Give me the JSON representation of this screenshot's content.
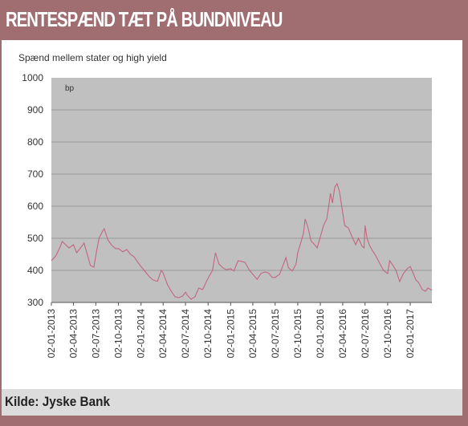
{
  "header": {
    "title": "RENTESPÆND TÆT PÅ BUNDNIVEAU"
  },
  "footer": {
    "source": "Kilde: Jyske Bank"
  },
  "colors": {
    "frame": "#a06e71",
    "plot_bg": "#c0c0c0",
    "line": "#c2667f",
    "footer_bg": "#dcdcdc"
  },
  "chart_data": {
    "type": "line",
    "title": "",
    "subtitle": "Spænd mellem stater og high yield",
    "unit_label": "bp",
    "xlabel": "",
    "ylabel": "",
    "ylim": [
      300,
      1000
    ],
    "yticks": [
      300,
      400,
      500,
      600,
      700,
      800,
      900,
      1000
    ],
    "xlim": [
      "2013-01-02",
      "2017-03-31"
    ],
    "xticks": [
      "02-01-2013",
      "02-04-2013",
      "02-07-2013",
      "02-10-2013",
      "02-01-2014",
      "02-04-2014",
      "02-07-2014",
      "02-10-2014",
      "02-01-2015",
      "02-04-2015",
      "02-07-2015",
      "02-10-2015",
      "02-01-2016",
      "02-04-2016",
      "02-07-2016",
      "02-10-2016",
      "02-01-2017"
    ],
    "grid": true,
    "legend": "none",
    "series": [
      {
        "values": [
          [
            "2013-01-02",
            430
          ],
          [
            "2013-01-20",
            445
          ],
          [
            "2013-02-05",
            470
          ],
          [
            "2013-02-15",
            490
          ],
          [
            "2013-03-01",
            480
          ],
          [
            "2013-03-15",
            470
          ],
          [
            "2013-04-02",
            480
          ],
          [
            "2013-04-15",
            455
          ],
          [
            "2013-05-01",
            470
          ],
          [
            "2013-05-15",
            485
          ],
          [
            "2013-05-28",
            450
          ],
          [
            "2013-06-10",
            415
          ],
          [
            "2013-06-24",
            410
          ],
          [
            "2013-07-05",
            460
          ],
          [
            "2013-07-15",
            500
          ],
          [
            "2013-07-28",
            520
          ],
          [
            "2013-08-05",
            530
          ],
          [
            "2013-08-20",
            495
          ],
          [
            "2013-09-05",
            478
          ],
          [
            "2013-09-20",
            468
          ],
          [
            "2013-10-02",
            468
          ],
          [
            "2013-10-20",
            458
          ],
          [
            "2013-11-05",
            465
          ],
          [
            "2013-11-20",
            450
          ],
          [
            "2013-12-05",
            442
          ],
          [
            "2013-12-20",
            425
          ],
          [
            "2014-01-02",
            412
          ],
          [
            "2014-01-20",
            395
          ],
          [
            "2014-02-05",
            380
          ],
          [
            "2014-02-20",
            370
          ],
          [
            "2014-03-10",
            366
          ],
          [
            "2014-03-25",
            400
          ],
          [
            "2014-04-02",
            392
          ],
          [
            "2014-04-20",
            355
          ],
          [
            "2014-05-05",
            335
          ],
          [
            "2014-05-20",
            318
          ],
          [
            "2014-06-05",
            315
          ],
          [
            "2014-06-20",
            320
          ],
          [
            "2014-07-02",
            332
          ],
          [
            "2014-07-10",
            322
          ],
          [
            "2014-07-25",
            310
          ],
          [
            "2014-08-10",
            318
          ],
          [
            "2014-08-25",
            345
          ],
          [
            "2014-09-10",
            340
          ],
          [
            "2014-09-25",
            365
          ],
          [
            "2014-10-05",
            380
          ],
          [
            "2014-10-20",
            400
          ],
          [
            "2014-11-01",
            455
          ],
          [
            "2014-11-15",
            420
          ],
          [
            "2014-12-01",
            408
          ],
          [
            "2014-12-15",
            402
          ],
          [
            "2015-01-02",
            405
          ],
          [
            "2015-01-15",
            398
          ],
          [
            "2015-02-01",
            430
          ],
          [
            "2015-02-15",
            428
          ],
          [
            "2015-03-01",
            425
          ],
          [
            "2015-03-20",
            400
          ],
          [
            "2015-04-02",
            388
          ],
          [
            "2015-04-20",
            372
          ],
          [
            "2015-05-05",
            390
          ],
          [
            "2015-05-20",
            395
          ],
          [
            "2015-06-05",
            392
          ],
          [
            "2015-06-20",
            378
          ],
          [
            "2015-07-02",
            378
          ],
          [
            "2015-07-20",
            388
          ],
          [
            "2015-08-05",
            420
          ],
          [
            "2015-08-15",
            440
          ],
          [
            "2015-08-25",
            408
          ],
          [
            "2015-09-10",
            398
          ],
          [
            "2015-09-25",
            420
          ],
          [
            "2015-10-02",
            455
          ],
          [
            "2015-10-15",
            488
          ],
          [
            "2015-10-25",
            515
          ],
          [
            "2015-11-01",
            560
          ],
          [
            "2015-11-12",
            535
          ],
          [
            "2015-11-25",
            492
          ],
          [
            "2015-12-10",
            480
          ],
          [
            "2015-12-20",
            470
          ],
          [
            "2016-01-02",
            505
          ],
          [
            "2016-01-15",
            540
          ],
          [
            "2016-01-28",
            560
          ],
          [
            "2016-02-05",
            600
          ],
          [
            "2016-02-12",
            640
          ],
          [
            "2016-02-20",
            610
          ],
          [
            "2016-03-01",
            660
          ],
          [
            "2016-03-10",
            670
          ],
          [
            "2016-03-20",
            645
          ],
          [
            "2016-04-02",
            580
          ],
          [
            "2016-04-10",
            540
          ],
          [
            "2016-04-25",
            532
          ],
          [
            "2016-05-10",
            505
          ],
          [
            "2016-05-25",
            480
          ],
          [
            "2016-06-05",
            500
          ],
          [
            "2016-06-20",
            475
          ],
          [
            "2016-06-28",
            470
          ],
          [
            "2016-07-02",
            540
          ],
          [
            "2016-07-10",
            500
          ],
          [
            "2016-07-20",
            478
          ],
          [
            "2016-08-01",
            462
          ],
          [
            "2016-08-15",
            445
          ],
          [
            "2016-09-01",
            420
          ],
          [
            "2016-09-15",
            400
          ],
          [
            "2016-10-02",
            390
          ],
          [
            "2016-10-10",
            430
          ],
          [
            "2016-10-20",
            420
          ],
          [
            "2016-11-05",
            400
          ],
          [
            "2016-11-20",
            365
          ],
          [
            "2016-12-05",
            390
          ],
          [
            "2016-12-20",
            405
          ],
          [
            "2017-01-02",
            412
          ],
          [
            "2017-01-12",
            395
          ],
          [
            "2017-01-25",
            370
          ],
          [
            "2017-02-05",
            362
          ],
          [
            "2017-02-20",
            340
          ],
          [
            "2017-03-05",
            335
          ],
          [
            "2017-03-15",
            345
          ],
          [
            "2017-03-31",
            338
          ]
        ]
      }
    ]
  }
}
